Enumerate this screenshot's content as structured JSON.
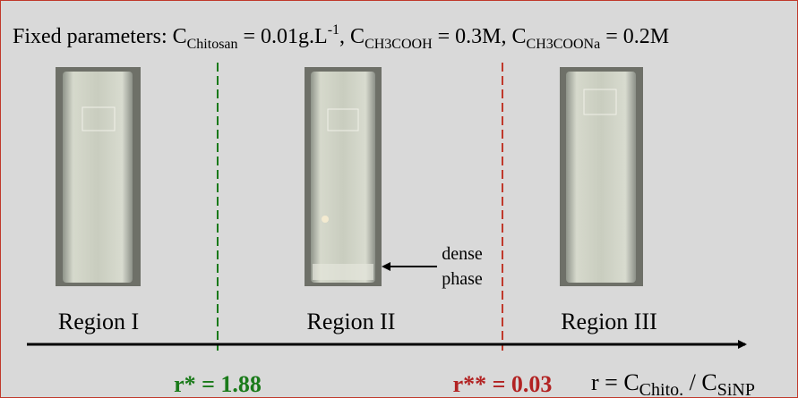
{
  "header": [
    "Fixed parameters: C",
    "Chitosan",
    " = 0.01g.L",
    "-1",
    ", C",
    "CH3COOH",
    " = 0.3M, C",
    "CH3COONa",
    " = 0.2M"
  ],
  "annotation": [
    "dense",
    "phase"
  ],
  "regions": [
    "Region I",
    "Region II",
    "Region III"
  ],
  "thresholds": [
    "r* = 1.88",
    "r** = 0.03"
  ],
  "axis_label": [
    "r = C",
    "Chito.",
    " / C",
    "SiNP"
  ]
}
